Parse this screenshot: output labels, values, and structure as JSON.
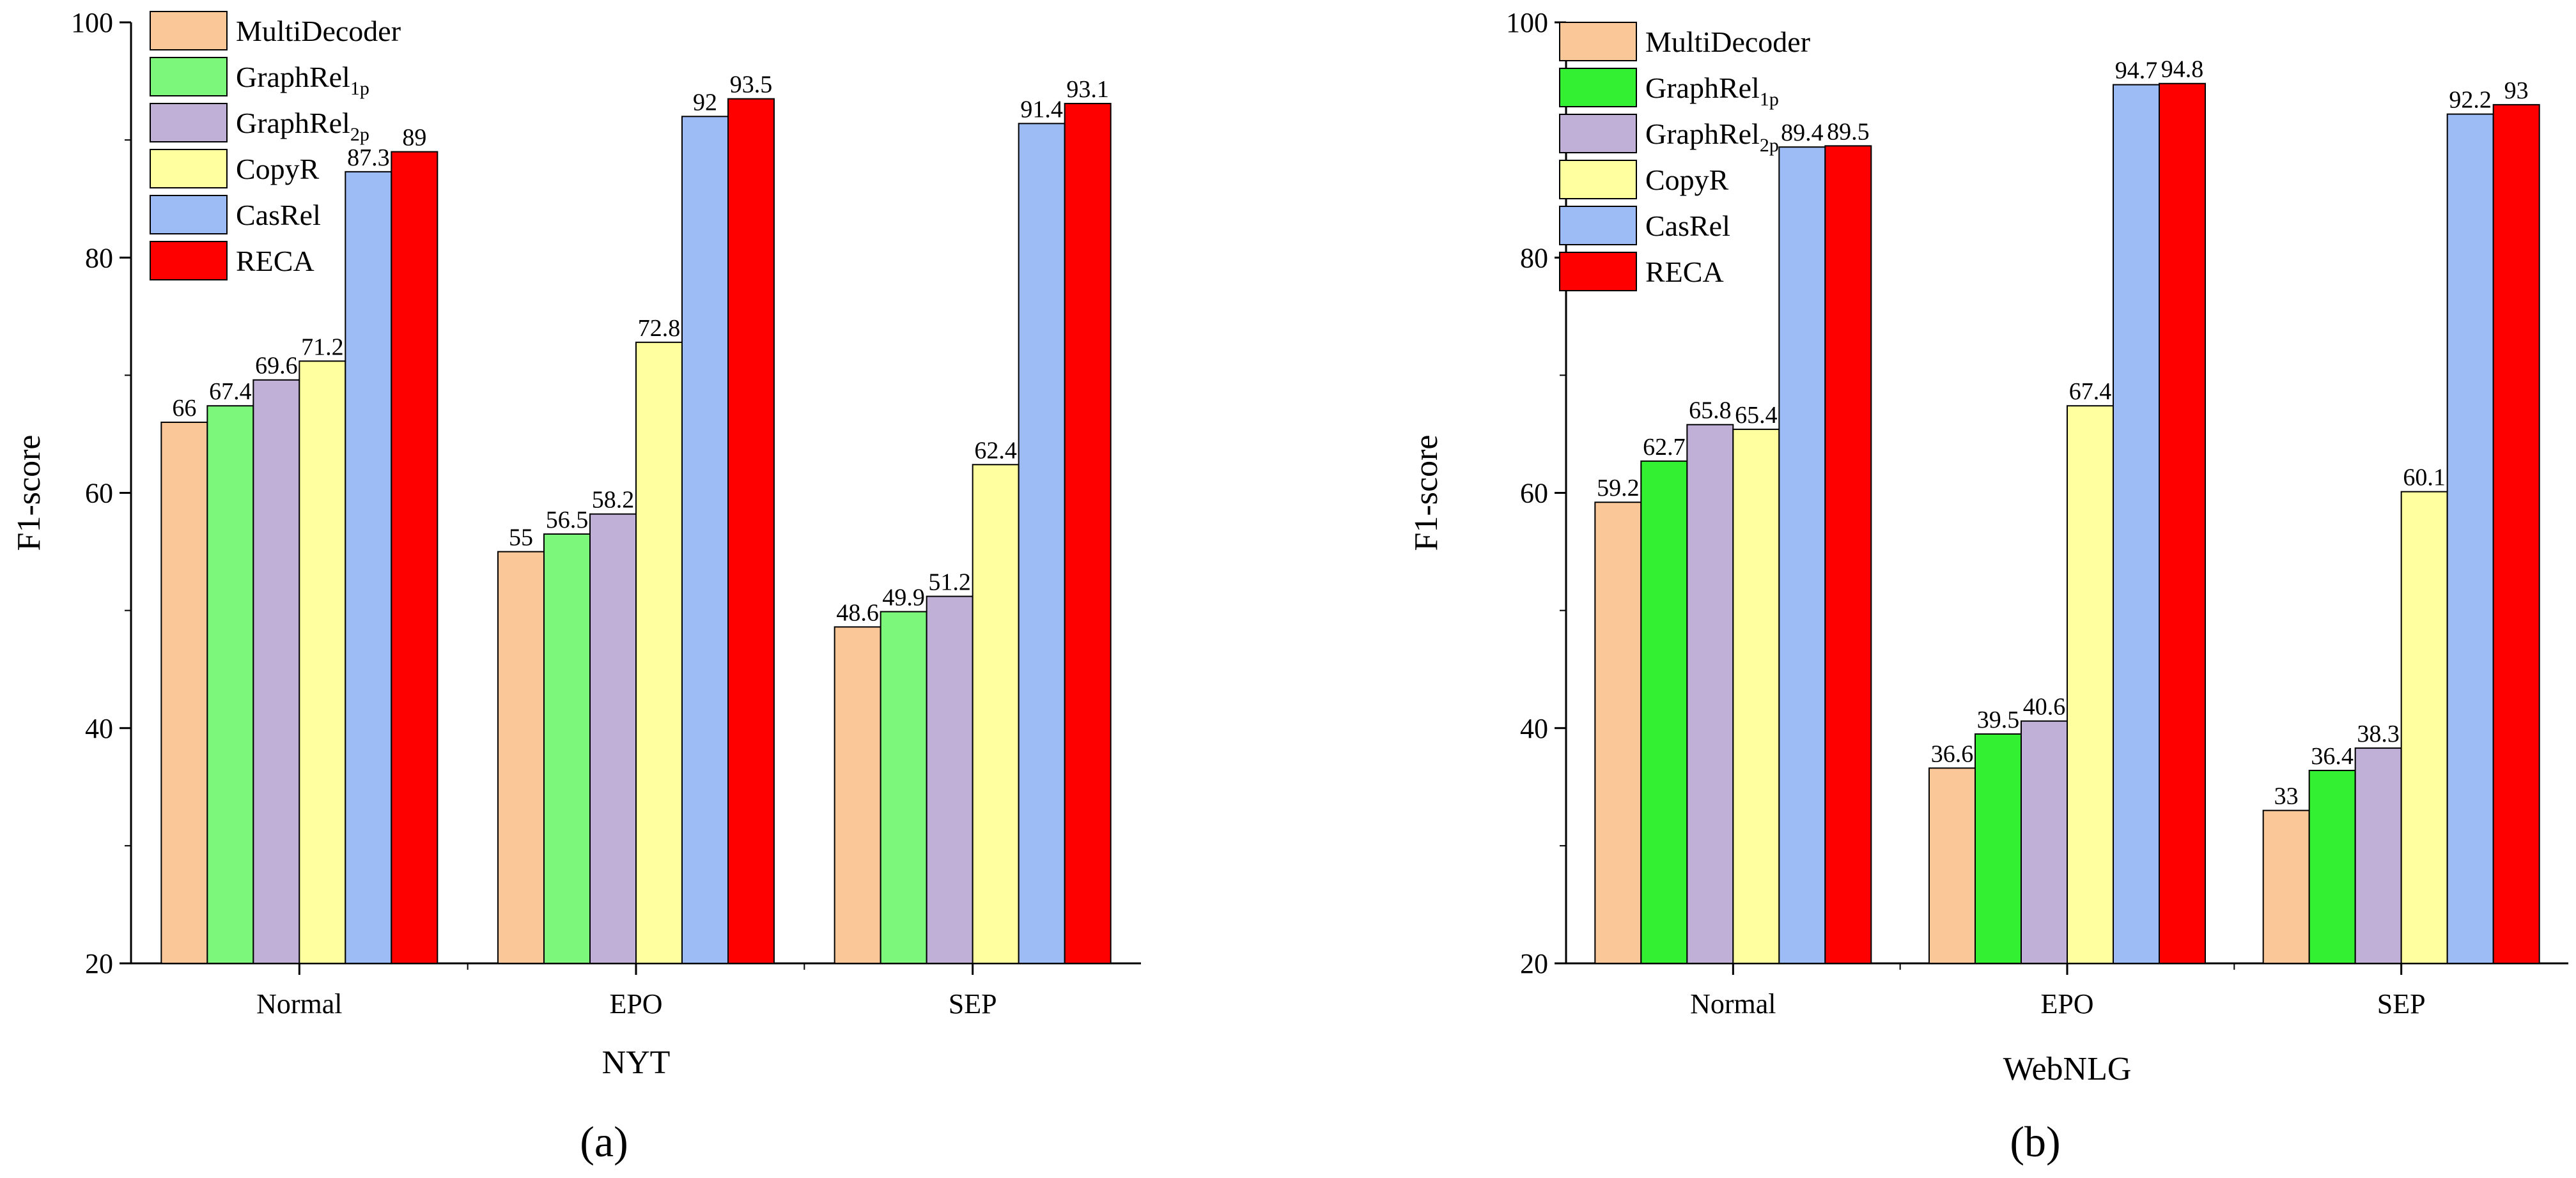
{
  "chart_data": [
    {
      "type": "bar",
      "panel_label": "(a)",
      "xlabel": "NYT",
      "ylabel": "F1-score",
      "ylim": [
        20,
        100
      ],
      "yticks": [
        20,
        40,
        60,
        80,
        100
      ],
      "categories": [
        "Normal",
        "EPO",
        "SEP"
      ],
      "legend_position": "top-left",
      "series": [
        {
          "name": "MultiDecoder",
          "sub": "",
          "color": "#FAC898",
          "values": [
            66,
            55,
            48.6
          ]
        },
        {
          "name": "GraphRel",
          "sub": "1p",
          "color": "#7CF77C",
          "values": [
            67.4,
            56.5,
            49.9
          ]
        },
        {
          "name": "GraphRel",
          "sub": "2p",
          "color": "#C0B0D8",
          "values": [
            69.6,
            58.2,
            51.2
          ]
        },
        {
          "name": "CopyR",
          "sub": "",
          "color": "#FFFFA0",
          "values": [
            71.2,
            72.8,
            62.4
          ]
        },
        {
          "name": "CasRel",
          "sub": "",
          "color": "#9DBCF5",
          "values": [
            87.3,
            92,
            91.4
          ]
        },
        {
          "name": "RECA",
          "sub": "",
          "color": "#FF0000",
          "values": [
            89,
            93.5,
            93.1
          ]
        }
      ]
    },
    {
      "type": "bar",
      "panel_label": "(b)",
      "xlabel": "WebNLG",
      "ylabel": "F1-score",
      "ylim": [
        20,
        100
      ],
      "yticks": [
        20,
        40,
        60,
        80,
        100
      ],
      "categories": [
        "Normal",
        "EPO",
        "SEP"
      ],
      "legend_position": "top-left",
      "series": [
        {
          "name": "MultiDecoder",
          "sub": "",
          "color": "#FAC898",
          "values": [
            59.2,
            36.6,
            33
          ]
        },
        {
          "name": "GraphRel",
          "sub": "1p",
          "color": "#33F033",
          "values": [
            62.7,
            39.5,
            36.4
          ]
        },
        {
          "name": "GraphRel",
          "sub": "2p",
          "color": "#C0B0D8",
          "values": [
            65.8,
            40.6,
            38.3
          ]
        },
        {
          "name": "CopyR",
          "sub": "",
          "color": "#FFFFA0",
          "values": [
            65.4,
            67.4,
            60.1
          ]
        },
        {
          "name": "CasRel",
          "sub": "",
          "color": "#9DBCF5",
          "values": [
            89.4,
            94.7,
            92.2
          ]
        },
        {
          "name": "RECA",
          "sub": "",
          "color": "#FF0000",
          "values": [
            89.5,
            94.8,
            93
          ]
        }
      ]
    }
  ]
}
